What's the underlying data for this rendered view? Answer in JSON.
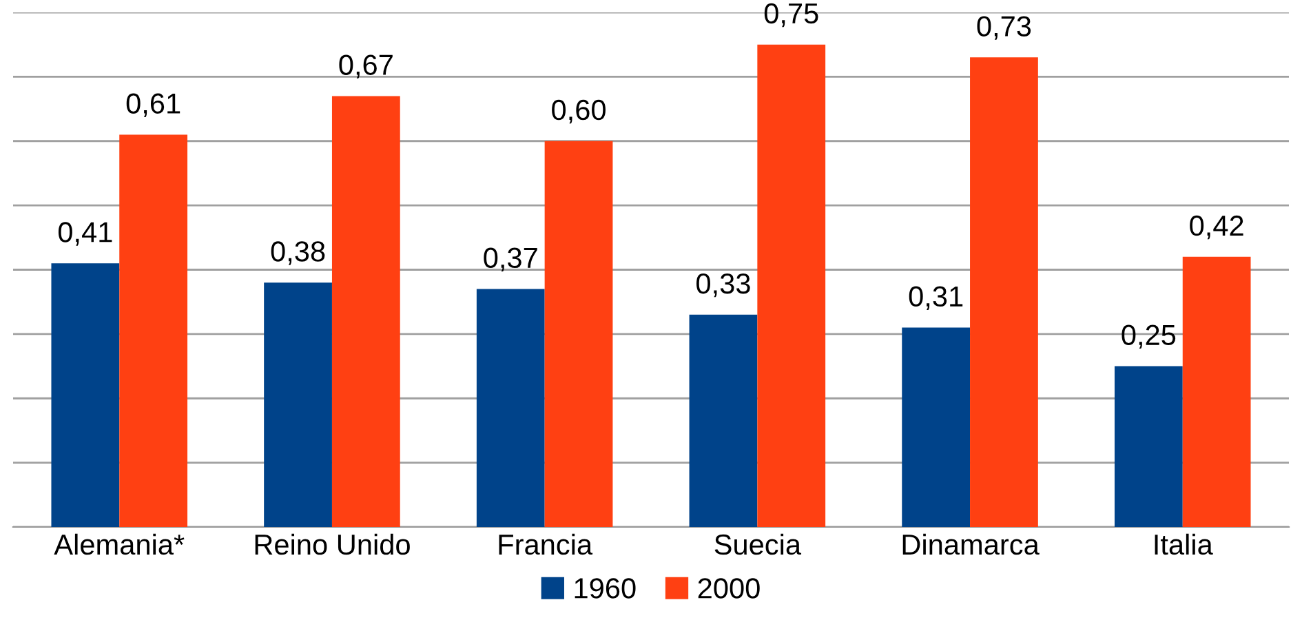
{
  "chart_data": {
    "type": "bar",
    "categories": [
      "Alemania*",
      "Reino Unido",
      "Francia",
      "Suecia",
      "Dinamarca",
      "Italia"
    ],
    "series": [
      {
        "name": "1960",
        "color": "#00438a",
        "values": [
          0.41,
          0.38,
          0.37,
          0.33,
          0.31,
          0.25
        ],
        "value_labels": [
          "0,41",
          "0,38",
          "0,37",
          "0,33",
          "0,31",
          "0,25"
        ]
      },
      {
        "name": "2000",
        "color": "#ff4012",
        "values": [
          0.61,
          0.67,
          0.6,
          0.75,
          0.73,
          0.42
        ],
        "value_labels": [
          "0,61",
          "0,67",
          "0,60",
          "0,75",
          "0,73",
          "0,42"
        ]
      }
    ],
    "ylim": [
      0,
      0.8
    ],
    "yticks": [
      {
        "value": 0,
        "label": null
      },
      {
        "value": 0.1,
        "label": null
      },
      {
        "value": 0.2,
        "label": null
      },
      {
        "value": 0.3,
        "label": null
      },
      {
        "value": 0.4,
        "label": null
      },
      {
        "value": 0.5,
        "label": null
      },
      {
        "value": 0.6,
        "label": null
      },
      {
        "value": 0.7,
        "label": null
      },
      {
        "value": 0.8,
        "label": null
      }
    ],
    "tick_labels": "x",
    "grid": "y",
    "legend": "bottom"
  }
}
